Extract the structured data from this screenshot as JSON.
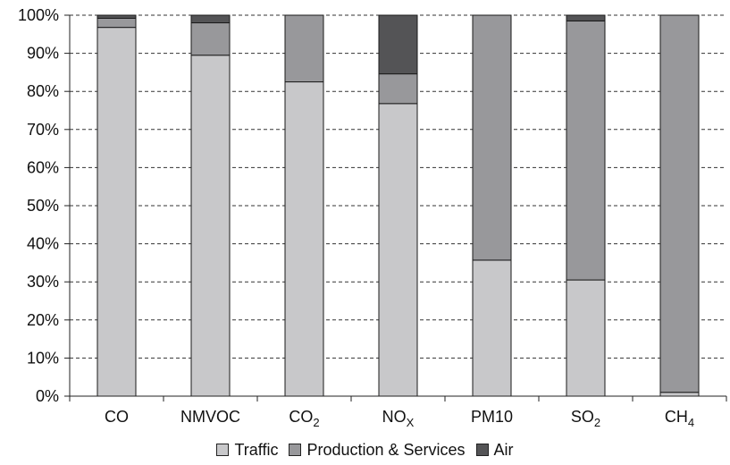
{
  "chart_data": {
    "type": "bar",
    "stacked": true,
    "percent_stacked": true,
    "categories": [
      {
        "base": "CO",
        "sub": ""
      },
      {
        "base": "NMVOC",
        "sub": ""
      },
      {
        "base": "CO",
        "sub": "2"
      },
      {
        "base": "NO",
        "sub": "X"
      },
      {
        "base": "PM10",
        "sub": ""
      },
      {
        "base": "SO",
        "sub": "2"
      },
      {
        "base": "CH",
        "sub": "4"
      }
    ],
    "series": [
      {
        "name": "Traffic",
        "color": "#c8c8ca",
        "values": [
          96.8,
          89.5,
          82.5,
          76.8,
          35.7,
          30.5,
          1.0
        ]
      },
      {
        "name": "Production & Services",
        "color": "#98989b",
        "values": [
          2.4,
          8.5,
          17.5,
          7.8,
          64.3,
          68.0,
          99.0
        ]
      },
      {
        "name": "Air",
        "color": "#545456",
        "values": [
          0.8,
          2.0,
          0.0,
          15.4,
          0.0,
          1.5,
          0.0
        ]
      }
    ],
    "yticks": [
      "0%",
      "10%",
      "20%",
      "30%",
      "40%",
      "50%",
      "60%",
      "70%",
      "80%",
      "90%",
      "100%"
    ],
    "ylim": [
      0,
      100
    ],
    "grid": "horizontal dashed",
    "legend_position": "bottom"
  }
}
